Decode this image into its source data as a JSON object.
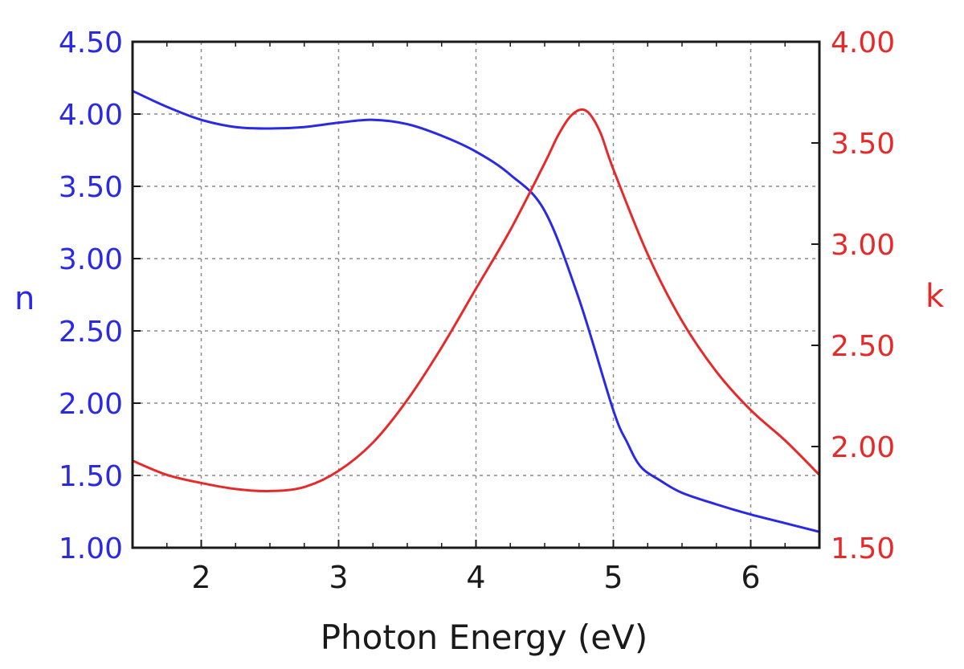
{
  "chart_data": {
    "type": "line",
    "title": "",
    "xlabel": "Photon Energy (eV)",
    "xlim": [
      1.5,
      6.5
    ],
    "xticks": [
      "2",
      "3",
      "4",
      "5",
      "6"
    ],
    "grid": true,
    "y_left": {
      "label": "n",
      "ylim": [
        1.0,
        4.5
      ],
      "ticks": [
        "1.00",
        "1.50",
        "2.00",
        "2.50",
        "3.00",
        "3.50",
        "4.00",
        "4.50"
      ],
      "color": "#2a2ae6"
    },
    "y_right": {
      "label": "k",
      "ylim": [
        1.5,
        4.0
      ],
      "ticks": [
        "1.50",
        "2.00",
        "2.50",
        "3.00",
        "3.50",
        "4.00"
      ],
      "color": "#e62a2a"
    },
    "series": [
      {
        "name": "n",
        "axis": "left",
        "color": "#2a2ae6",
        "x": [
          1.5,
          1.75,
          2.0,
          2.25,
          2.5,
          2.75,
          3.0,
          3.25,
          3.5,
          3.75,
          4.0,
          4.25,
          4.5,
          4.75,
          5.0,
          5.1,
          5.2,
          5.35,
          5.5,
          5.75,
          6.0,
          6.25,
          6.5
        ],
        "values": [
          4.16,
          4.05,
          3.96,
          3.91,
          3.9,
          3.91,
          3.94,
          3.96,
          3.93,
          3.85,
          3.74,
          3.58,
          3.33,
          2.72,
          1.95,
          1.73,
          1.56,
          1.46,
          1.38,
          1.3,
          1.23,
          1.17,
          1.11
        ]
      },
      {
        "name": "k",
        "axis": "right",
        "color": "#e62a2a",
        "x": [
          1.5,
          1.75,
          2.0,
          2.25,
          2.5,
          2.75,
          3.0,
          3.25,
          3.5,
          3.75,
          4.0,
          4.25,
          4.5,
          4.6,
          4.7,
          4.8,
          4.9,
          5.0,
          5.25,
          5.5,
          5.75,
          6.0,
          6.25,
          6.5
        ],
        "values": [
          1.93,
          1.86,
          1.82,
          1.79,
          1.78,
          1.8,
          1.88,
          2.02,
          2.23,
          2.49,
          2.78,
          3.07,
          3.4,
          3.54,
          3.64,
          3.66,
          3.56,
          3.37,
          2.95,
          2.62,
          2.37,
          2.18,
          2.03,
          1.86
        ]
      }
    ]
  }
}
